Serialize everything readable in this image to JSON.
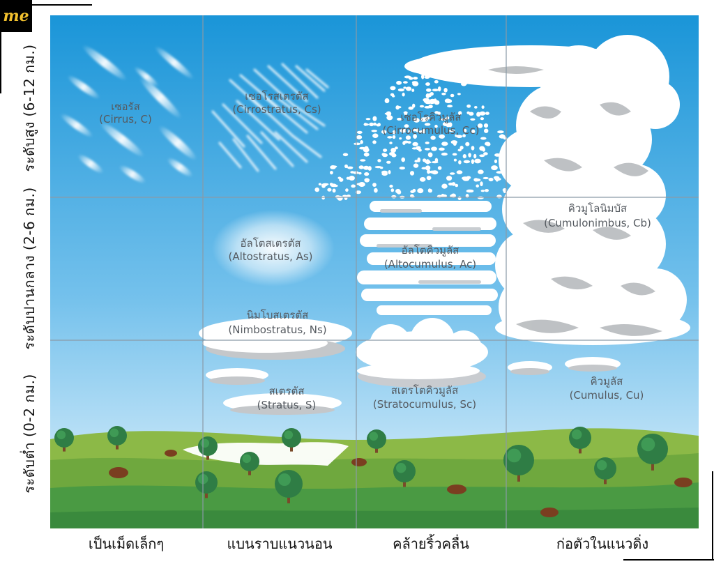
{
  "logo": "me",
  "rows": [
    {
      "label": "ระดับสูง (6-12 กม.)"
    },
    {
      "label": "ระดับปานกลาง (2-6 กม.)"
    },
    {
      "label": "ระดับต่ำ (0-2 กม.)"
    }
  ],
  "columns": [
    {
      "label": "เป็นเม็ดเล็กๆ"
    },
    {
      "label": "แบนราบแนวนอน"
    },
    {
      "label": "คล้ายริ้วคลื่น"
    },
    {
      "label": "ก่อตัวในแนวดิ่ง"
    }
  ],
  "clouds": {
    "cirrus": {
      "thai": "เซอรัส",
      "en": "(Cirrus, C)"
    },
    "cirrostratus": {
      "thai": "เซอโรสเตรตัส",
      "en": "(Cirrostratus, Cs)"
    },
    "cirrocumulus": {
      "thai": "เซอโรคิวมูลัส",
      "en": "(Cirrocumulus, Cc)"
    },
    "altostratus": {
      "thai": "อัลโตสเตรตัส",
      "en": "(Altostratus, As)"
    },
    "altocumulus": {
      "thai": "อัลโตคิวมูลัส",
      "en": "(Altocumulus, Ac)"
    },
    "cumulonimbus": {
      "thai": "คิวมูโลนิมบัส",
      "en": "(Cumulonimbus, Cb)"
    },
    "nimbostratus": {
      "thai": "นิมโบสเตรตัส",
      "en": "(Nimbostratus, Ns)"
    },
    "stratus": {
      "thai": "สเตรตัส",
      "en": "(Stratus, S)"
    },
    "stratocumulus": {
      "thai": "สเตรโตคิวมูลัส",
      "en": "(Stratocumulus, Sc)"
    },
    "cumulus": {
      "thai": "คิวมูลัส",
      "en": "(Cumulus, Cu)"
    }
  },
  "colors": {
    "sky_top": "#1a95d8",
    "sky_bottom": "#d9eefb",
    "grid": "#8a9aa6",
    "cloud": "#ffffff",
    "cloud_shadow": "#b9bcbf",
    "grass_light": "#7fb241",
    "grass_dark": "#3f9440",
    "tree": "#2f7d45",
    "trunk": "#7a4a2a",
    "rock": "#7a3e20",
    "logo_bg": "#000000",
    "logo_fg": "#f2c12e"
  }
}
